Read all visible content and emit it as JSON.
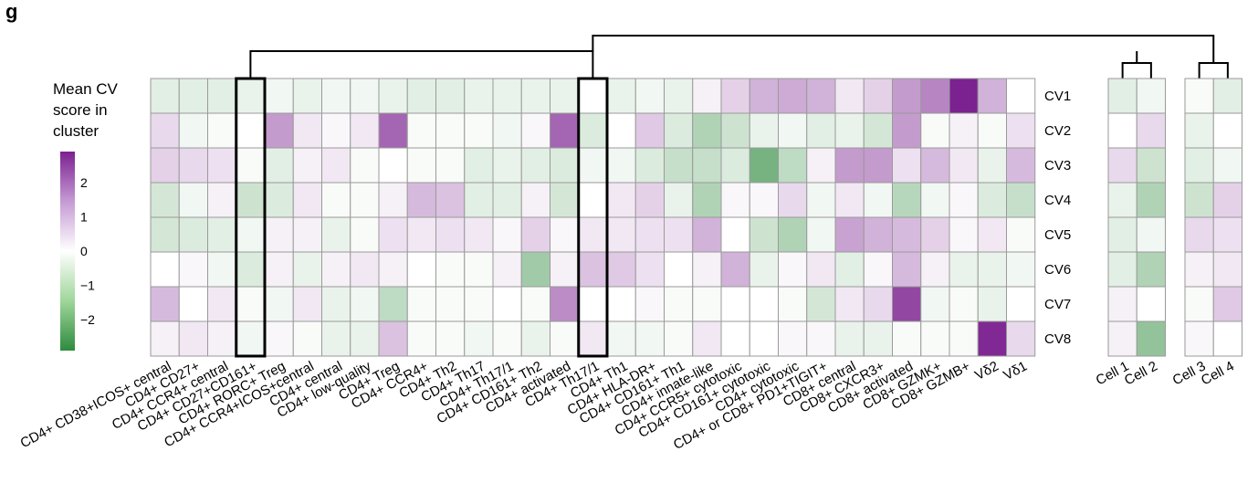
{
  "panel_label": "g",
  "legend": {
    "title_lines": [
      "Mean CV",
      "score in",
      "cluster"
    ],
    "ticks": [
      {
        "value": 2,
        "label": "2"
      },
      {
        "value": 1,
        "label": "1"
      },
      {
        "value": 0,
        "label": "0"
      },
      {
        "value": -1,
        "label": "−1"
      },
      {
        "value": -2,
        "label": "−2"
      }
    ],
    "range": [
      -2.9,
      2.9
    ]
  },
  "chart_data": {
    "type": "heatmap",
    "rows": [
      "CV1",
      "CV2",
      "CV3",
      "CV4",
      "CV5",
      "CV6",
      "CV7",
      "CV8"
    ],
    "color_scale": {
      "min": -2.9,
      "mid": 0,
      "max": 2.9,
      "low": "#2e8b3e",
      "mid_color": "#ffffff",
      "high": "#7b2190"
    },
    "panels": [
      {
        "name": "clusters",
        "columns": [
          "CD4+ CD38+ICOS+ central",
          "CD4+ CD27+",
          "CD4+ CCR4+ central",
          "CD4+ CD27+CD161+",
          "CD4+ RORC+ Treg",
          "CD4+ CCR4+ICOS+central",
          "CD4+ central",
          "CD4+ low-quality",
          "CD4+ Treg",
          "CD4+ CCR4+",
          "CD4+ Th2",
          "CD4+ Th17",
          "CD4+ Th17/1",
          "CD4+ CD161+ Th2",
          "CD4+ activated",
          "CD4+ Th17/1",
          "CD4+ Th1",
          "CD4+ HLA-DR+",
          "CD4+ CD161+ Th1",
          "CD4+ innate-like",
          "CD4+ CCR5+ cytotoxic",
          "CD4+ CD161+ cytotoxic",
          "CD4+ cytotoxic",
          "CD4+ or CD8+ PD1+TIGIT+",
          "CD8+ central",
          "CD8+ CXCR3+",
          "CD8+ activated",
          "CD8+ GZMK+",
          "CD8+ GZMB+",
          "Vδ2",
          "Vδ1"
        ],
        "highlighted_columns": [
          3,
          15
        ],
        "values": [
          [
            -0.4,
            -0.4,
            -0.4,
            -0.3,
            -0.2,
            -0.3,
            -0.2,
            -0.2,
            -0.3,
            -0.4,
            -0.4,
            -0.3,
            -0.3,
            -0.3,
            -0.3,
            0.0,
            -0.3,
            -0.2,
            -0.3,
            0.2,
            0.6,
            1.0,
            1.1,
            1.0,
            0.3,
            0.6,
            1.3,
            1.6,
            2.9,
            1.0,
            0.0
          ],
          [
            0.5,
            -0.2,
            -0.1,
            0.0,
            1.3,
            0.3,
            0.1,
            0.3,
            2.0,
            -0.1,
            -0.1,
            -0.1,
            -0.2,
            0.1,
            2.0,
            -0.5,
            0.0,
            0.7,
            -0.5,
            -1.1,
            -0.7,
            -0.3,
            -0.2,
            -0.4,
            -0.3,
            -0.6,
            1.3,
            -0.1,
            0.2,
            -0.1,
            0.4
          ],
          [
            0.6,
            0.5,
            0.4,
            -0.1,
            -0.4,
            0.2,
            0.3,
            -0.1,
            0.0,
            -0.1,
            -0.1,
            -0.4,
            -0.3,
            -0.4,
            -0.5,
            -0.2,
            -0.2,
            -0.5,
            -0.8,
            -0.8,
            -0.5,
            -1.9,
            -0.9,
            0.2,
            1.3,
            1.3,
            0.4,
            0.9,
            0.3,
            -0.3,
            0.9
          ],
          [
            -0.6,
            -0.2,
            0.2,
            -0.7,
            -0.5,
            0.3,
            -0.1,
            -0.1,
            0.2,
            0.9,
            0.8,
            -0.4,
            -0.4,
            0.2,
            -0.6,
            0.0,
            0.3,
            0.6,
            -0.3,
            -1.1,
            0.1,
            0.1,
            0.5,
            -0.2,
            0.3,
            -0.2,
            -1.0,
            -0.2,
            0.1,
            -0.5,
            -0.8
          ],
          [
            -0.6,
            -0.5,
            -0.4,
            -0.2,
            0.2,
            0.2,
            -0.3,
            -0.1,
            0.4,
            0.3,
            0.4,
            0.3,
            0.1,
            0.6,
            0.1,
            0.3,
            0.3,
            0.4,
            0.4,
            1.0,
            0.0,
            -0.7,
            -1.1,
            -0.2,
            1.2,
            1.0,
            0.9,
            0.6,
            0.1,
            0.3,
            -0.1
          ],
          [
            0.0,
            0.1,
            -0.2,
            -0.5,
            0.2,
            -0.3,
            0.2,
            0.3,
            0.2,
            0.0,
            -0.1,
            -0.1,
            0.2,
            -1.3,
            0.2,
            0.8,
            0.7,
            0.4,
            0.0,
            0.2,
            1.0,
            -0.3,
            0.1,
            0.3,
            -0.4,
            0.1,
            0.9,
            0.2,
            -0.3,
            -0.3,
            -0.2
          ],
          [
            0.9,
            0.0,
            0.3,
            -0.1,
            -0.2,
            0.3,
            -0.3,
            -0.2,
            -0.9,
            -0.1,
            -0.1,
            -0.1,
            0.0,
            -0.1,
            1.5,
            0.0,
            0.0,
            0.1,
            -0.1,
            -0.1,
            0.0,
            0.0,
            -0.1,
            -0.6,
            0.3,
            0.5,
            2.4,
            -0.2,
            -0.1,
            -0.3,
            0.0
          ],
          [
            0.2,
            0.3,
            0.2,
            -0.2,
            0.1,
            -0.1,
            -0.3,
            -0.3,
            0.8,
            -0.1,
            -0.1,
            -0.2,
            -0.1,
            -0.3,
            -0.1,
            0.3,
            -0.2,
            -0.2,
            -0.1,
            0.3,
            0.0,
            0.0,
            0.1,
            0.1,
            -0.3,
            -0.3,
            -0.1,
            -0.1,
            -0.1,
            2.8,
            0.5
          ]
        ]
      },
      {
        "name": "cells-1-2",
        "columns": [
          "Cell 1",
          "Cell 2"
        ],
        "values": [
          [
            -0.4,
            -0.2
          ],
          [
            0.0,
            0.5
          ],
          [
            0.5,
            -0.7
          ],
          [
            -0.3,
            -1.1
          ],
          [
            -0.4,
            -0.2
          ],
          [
            -0.4,
            -1.1
          ],
          [
            0.2,
            0.0
          ],
          [
            0.2,
            -1.5
          ]
        ]
      },
      {
        "name": "cells-3-4",
        "columns": [
          "Cell 3",
          "Cell 4"
        ],
        "values": [
          [
            -0.1,
            -0.4
          ],
          [
            -0.3,
            0.0
          ],
          [
            -0.4,
            -0.2
          ],
          [
            -0.7,
            0.6
          ],
          [
            0.5,
            0.4
          ],
          [
            0.2,
            0.3
          ],
          [
            -0.1,
            0.7
          ],
          [
            0.1,
            0.0
          ]
        ]
      }
    ],
    "dendrogram": {
      "links": [
        {
          "left": "CD4+ CD27+CD161+",
          "right": "CD4+ Th17/1"
        },
        {
          "left": "Cell 1",
          "right": "Cell 2"
        },
        {
          "left": "Cell 3",
          "right": "Cell 4"
        },
        {
          "left": "CD4+ Th17/1",
          "right": "Cell 3 + Cell 4"
        }
      ]
    }
  }
}
